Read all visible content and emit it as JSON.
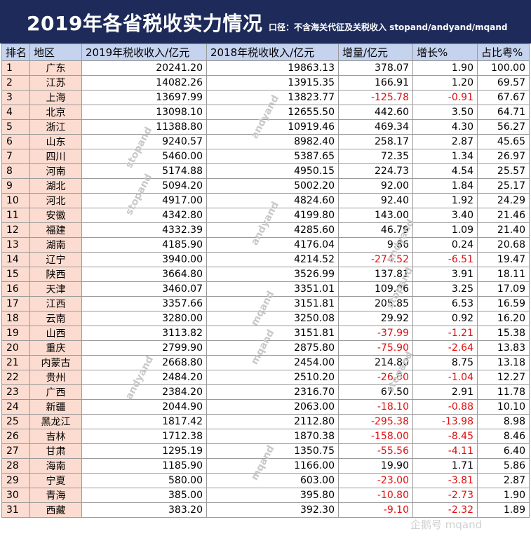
{
  "title": "2019年各省税收实力情况",
  "caliber": "口径：不含海关代征及关税收入  stopand/andyand/mqand",
  "headers": [
    "排名",
    "地区",
    "2019年税收收入/亿元",
    "2018年税收收入/亿元",
    "增量/亿元",
    "增长%",
    "占比粤%"
  ],
  "rows": [
    [
      "1",
      "广东",
      "20241.20",
      "19863.13",
      "378.07",
      "1.90",
      "100.00"
    ],
    [
      "2",
      "江苏",
      "14082.26",
      "13915.35",
      "166.91",
      "1.20",
      "69.57"
    ],
    [
      "3",
      "上海",
      "13697.99",
      "13823.77",
      "-125.78",
      "-0.91",
      "67.67"
    ],
    [
      "4",
      "北京",
      "13098.10",
      "12655.50",
      "442.60",
      "3.50",
      "64.71"
    ],
    [
      "5",
      "浙江",
      "11388.80",
      "10919.46",
      "469.34",
      "4.30",
      "56.27"
    ],
    [
      "6",
      "山东",
      "9240.57",
      "8982.40",
      "258.17",
      "2.87",
      "45.65"
    ],
    [
      "7",
      "四川",
      "5460.00",
      "5387.65",
      "72.35",
      "1.34",
      "26.97"
    ],
    [
      "8",
      "河南",
      "5174.88",
      "4950.15",
      "224.73",
      "4.54",
      "25.57"
    ],
    [
      "9",
      "湖北",
      "5094.20",
      "5002.20",
      "92.00",
      "1.84",
      "25.17"
    ],
    [
      "10",
      "河北",
      "4917.00",
      "4824.60",
      "92.40",
      "1.92",
      "24.29"
    ],
    [
      "11",
      "安徽",
      "4342.80",
      "4199.80",
      "143.00",
      "3.40",
      "21.46"
    ],
    [
      "12",
      "福建",
      "4332.39",
      "4285.60",
      "46.79",
      "1.09",
      "21.40"
    ],
    [
      "13",
      "湖南",
      "4185.90",
      "4176.04",
      "9.86",
      "0.24",
      "20.68"
    ],
    [
      "14",
      "辽宁",
      "3940.00",
      "4214.52",
      "-274.52",
      "-6.51",
      "19.47"
    ],
    [
      "15",
      "陕西",
      "3664.80",
      "3526.99",
      "137.81",
      "3.91",
      "18.11"
    ],
    [
      "16",
      "天津",
      "3460.07",
      "3351.01",
      "109.06",
      "3.25",
      "17.09"
    ],
    [
      "17",
      "江西",
      "3357.66",
      "3151.81",
      "205.85",
      "6.53",
      "16.59"
    ],
    [
      "18",
      "云南",
      "3280.00",
      "3250.08",
      "29.92",
      "0.92",
      "16.20"
    ],
    [
      "19",
      "山西",
      "3113.82",
      "3151.81",
      "-37.99",
      "-1.21",
      "15.38"
    ],
    [
      "20",
      "重庆",
      "2799.90",
      "2875.80",
      "-75.90",
      "-2.64",
      "13.83"
    ],
    [
      "21",
      "内蒙古",
      "2668.80",
      "2454.00",
      "214.80",
      "8.75",
      "13.18"
    ],
    [
      "22",
      "贵州",
      "2484.20",
      "2510.20",
      "-26.00",
      "-1.04",
      "12.27"
    ],
    [
      "23",
      "广西",
      "2384.20",
      "2316.70",
      "67.50",
      "2.91",
      "11.78"
    ],
    [
      "24",
      "新疆",
      "2044.90",
      "2063.00",
      "-18.10",
      "-0.88",
      "10.10"
    ],
    [
      "25",
      "黑龙江",
      "1817.42",
      "2112.80",
      "-295.38",
      "-13.98",
      "8.98"
    ],
    [
      "26",
      "吉林",
      "1712.38",
      "1870.38",
      "-158.00",
      "-8.45",
      "8.46"
    ],
    [
      "27",
      "甘肃",
      "1295.19",
      "1350.75",
      "-55.56",
      "-4.11",
      "6.40"
    ],
    [
      "28",
      "海南",
      "1185.90",
      "1166.00",
      "19.90",
      "1.71",
      "5.86"
    ],
    [
      "29",
      "宁夏",
      "580.00",
      "603.00",
      "-23.00",
      "-3.81",
      "2.87"
    ],
    [
      "30",
      "青海",
      "385.00",
      "395.80",
      "-10.80",
      "-2.73",
      "1.90"
    ],
    [
      "31",
      "西藏",
      "383.20",
      "392.30",
      "-9.10",
      "-2.32",
      "1.89"
    ]
  ],
  "watermarks": [
    "andyand",
    "stopand",
    "stopand",
    "andyand",
    "andyand",
    "mqand",
    "mqand",
    "andyand",
    "mqand",
    "stopand",
    "stopand"
  ],
  "wechat_mark": "企鹅号 mqand",
  "colors": {
    "header_bg": "#1e2b5a",
    "column_header_bg": "#c5d3ef",
    "rank_region_bg": "#fcdcd0",
    "negative_text": "#e01010"
  }
}
